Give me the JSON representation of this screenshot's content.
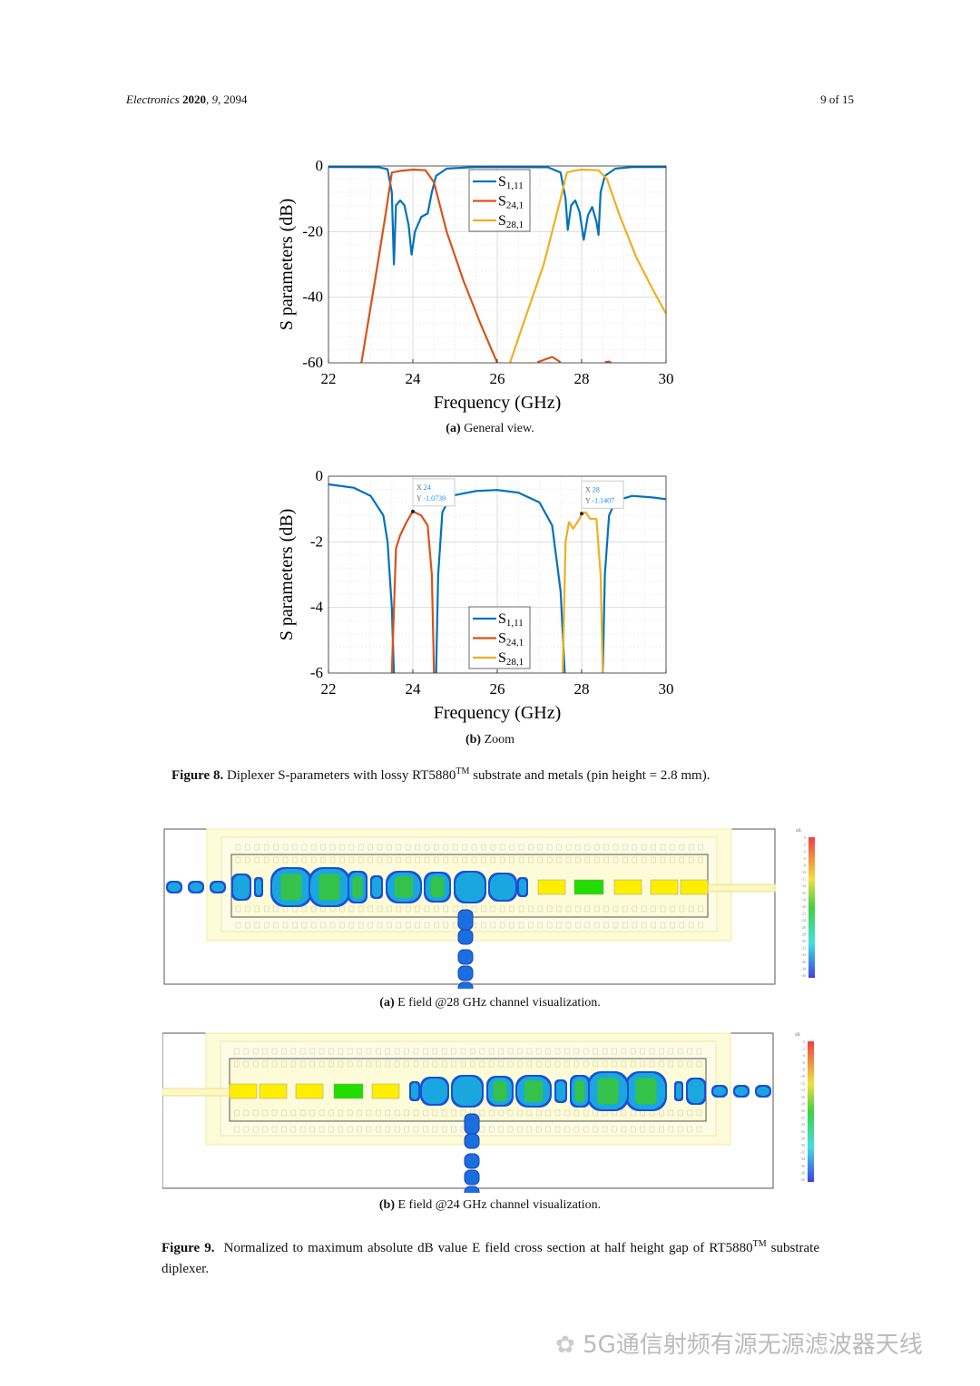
{
  "header": {
    "journal": "Electronics",
    "year": "2020",
    "volume": "9",
    "article": "2094",
    "page": "9 of 15"
  },
  "figure8": {
    "label": "Figure 8.",
    "caption_pre": "Diplexer S-parameters with lossy RT5880",
    "caption_sup": "TM",
    "caption_post": "substrate and metals (pin height = 2.8 mm).",
    "sub_a": {
      "label": "(a)",
      "text": "General view."
    },
    "sub_b": {
      "label": "(b)",
      "text": "Zoom"
    }
  },
  "chart_data": [
    {
      "type": "line",
      "title": "",
      "xlabel": "Frequency (GHz)",
      "ylabel": "S parameters (dB)",
      "xlim": [
        22,
        30
      ],
      "ylim": [
        -60,
        0
      ],
      "xticks": [
        "22",
        "24",
        "26",
        "28",
        "30"
      ],
      "yticks": [
        "0",
        "-20",
        "-40",
        "-60"
      ],
      "grid": true,
      "legend_position": "top-center",
      "series": [
        {
          "name": "S1,11",
          "base": "S",
          "sub": "1,11",
          "color": "#0072BD",
          "points": [
            [
              22,
              -0.3
            ],
            [
              23.2,
              -0.4
            ],
            [
              23.4,
              -1
            ],
            [
              23.5,
              -8
            ],
            [
              23.55,
              -30
            ],
            [
              23.6,
              -12
            ],
            [
              23.7,
              -10.5
            ],
            [
              23.8,
              -12
            ],
            [
              23.9,
              -18
            ],
            [
              23.97,
              -27
            ],
            [
              24.05,
              -20
            ],
            [
              24.2,
              -15.5
            ],
            [
              24.35,
              -14.5
            ],
            [
              24.45,
              -8
            ],
            [
              24.55,
              -3
            ],
            [
              24.8,
              -0.8
            ],
            [
              25.5,
              -0.3
            ],
            [
              27.2,
              -0.4
            ],
            [
              27.5,
              -2
            ],
            [
              27.62,
              -10
            ],
            [
              27.67,
              -19.5
            ],
            [
              27.75,
              -12
            ],
            [
              27.85,
              -10.5
            ],
            [
              27.95,
              -14
            ],
            [
              28.05,
              -22.5
            ],
            [
              28.15,
              -15
            ],
            [
              28.25,
              -12.5
            ],
            [
              28.35,
              -17
            ],
            [
              28.4,
              -21
            ],
            [
              28.45,
              -8
            ],
            [
              28.55,
              -3
            ],
            [
              28.8,
              -0.8
            ],
            [
              29.2,
              -0.3
            ],
            [
              30,
              -0.3
            ]
          ]
        },
        {
          "name": "S24,1",
          "base": "S",
          "sub": "24,1",
          "color": "#D95319",
          "points": [
            [
              22.78,
              -60
            ],
            [
              23.1,
              -35
            ],
            [
              23.35,
              -15
            ],
            [
              23.5,
              -2
            ],
            [
              23.7,
              -1.5
            ],
            [
              24,
              -1.1
            ],
            [
              24.3,
              -1.3
            ],
            [
              24.5,
              -5
            ],
            [
              24.8,
              -20
            ],
            [
              25.2,
              -35
            ],
            [
              25.6,
              -48
            ],
            [
              26,
              -60
            ],
            null,
            [
              26.95,
              -59.8
            ],
            [
              27.3,
              -58.2
            ],
            [
              27.5,
              -59.8
            ],
            null,
            [
              28.55,
              -59.8
            ],
            [
              28.65,
              -59.6
            ],
            [
              28.7,
              -60
            ]
          ]
        },
        {
          "name": "S28,1",
          "base": "S",
          "sub": "28,1",
          "color": "#EDB120",
          "points": [
            [
              26.3,
              -60
            ],
            [
              26.7,
              -45
            ],
            [
              27.1,
              -30
            ],
            [
              27.5,
              -10
            ],
            [
              27.65,
              -2
            ],
            [
              27.8,
              -1.5
            ],
            [
              28,
              -1.1
            ],
            [
              28.4,
              -1.3
            ],
            [
              28.6,
              -4
            ],
            [
              28.9,
              -15
            ],
            [
              29.3,
              -28
            ],
            [
              29.7,
              -38
            ],
            [
              30,
              -45
            ]
          ]
        }
      ]
    },
    {
      "type": "line",
      "title": "",
      "xlabel": "Frequency (GHz)",
      "ylabel": "S parameters (dB)",
      "xlim": [
        22,
        30
      ],
      "ylim": [
        -6,
        0
      ],
      "xticks": [
        "22",
        "24",
        "26",
        "28",
        "30"
      ],
      "yticks": [
        "0",
        "-2",
        "-4",
        "-6"
      ],
      "grid": true,
      "legend_position": "bottom-center",
      "datatips": [
        {
          "x": 24,
          "y": -1.0739,
          "xlabel": "X",
          "ylabel": "Y",
          "xtext": "24",
          "ytext": "-1.0739"
        },
        {
          "x": 28,
          "y": -1.1407,
          "xlabel": "X",
          "ylabel": "Y",
          "xtext": "28",
          "ytext": "-1.1407"
        }
      ],
      "series": [
        {
          "name": "S1,11",
          "base": "S",
          "sub": "1,11",
          "color": "#0072BD",
          "points": [
            [
              22,
              -0.25
            ],
            [
              22.6,
              -0.35
            ],
            [
              23,
              -0.6
            ],
            [
              23.3,
              -1.2
            ],
            [
              23.4,
              -2
            ],
            [
              23.5,
              -4
            ],
            [
              23.55,
              -6
            ],
            null,
            [
              24.55,
              -6
            ],
            [
              24.6,
              -3
            ],
            [
              24.7,
              -1.1
            ],
            [
              24.9,
              -0.6
            ],
            [
              25.5,
              -0.45
            ],
            [
              26,
              -0.42
            ],
            [
              26.5,
              -0.5
            ],
            [
              27,
              -0.8
            ],
            [
              27.3,
              -1.5
            ],
            [
              27.5,
              -3.5
            ],
            [
              27.6,
              -6
            ],
            null,
            [
              28.5,
              -6
            ],
            [
              28.55,
              -3
            ],
            [
              28.65,
              -1.2
            ],
            [
              28.8,
              -0.75
            ],
            [
              29.2,
              -0.6
            ],
            [
              29.7,
              -0.65
            ],
            [
              30,
              -0.7
            ]
          ]
        },
        {
          "name": "S24,1",
          "base": "S",
          "sub": "24,1",
          "color": "#D95319",
          "points": [
            [
              23.5,
              -6
            ],
            [
              23.6,
              -2.2
            ],
            [
              23.7,
              -1.8
            ],
            [
              23.85,
              -1.4
            ],
            [
              24,
              -1.07
            ],
            [
              24.2,
              -1.2
            ],
            [
              24.35,
              -1.5
            ],
            [
              24.45,
              -3
            ],
            [
              24.5,
              -6
            ]
          ]
        },
        {
          "name": "S28,1",
          "base": "S",
          "sub": "28,1",
          "color": "#EDB120",
          "points": [
            [
              27.55,
              -6
            ],
            [
              27.62,
              -2
            ],
            [
              27.7,
              -1.4
            ],
            [
              27.8,
              -1.6
            ],
            [
              27.95,
              -1.3
            ],
            [
              28,
              -1.14
            ],
            [
              28.1,
              -1.1
            ],
            [
              28.2,
              -1.3
            ],
            [
              28.35,
              -1.3
            ],
            [
              28.45,
              -3
            ],
            [
              28.5,
              -6
            ]
          ]
        }
      ]
    }
  ],
  "figure9": {
    "label": "Figure 9.",
    "caption_pre": "Normalized to maximum absolute dB value E field cross section at half height gap of RT5880",
    "caption_sup": "TM",
    "caption_post": "substrate diplexer.",
    "sub_a": {
      "label": "(a)",
      "text": "E field @28 GHz channel visualization."
    },
    "sub_b": {
      "label": "(b)",
      "text": "E field @24 GHz channel visualization."
    },
    "colorbar": {
      "unit": "dB",
      "ticks": [
        "0",
        "-2",
        "-4",
        "-6",
        "-8",
        "-10",
        "-12",
        "-14",
        "-16",
        "-18",
        "-20",
        "-22",
        "-24",
        "-26",
        "-28",
        "-30",
        "-32",
        "-34",
        "-36",
        "-38",
        "-40"
      ]
    }
  },
  "watermark": "5G通信射频有源无源滤波器天线"
}
